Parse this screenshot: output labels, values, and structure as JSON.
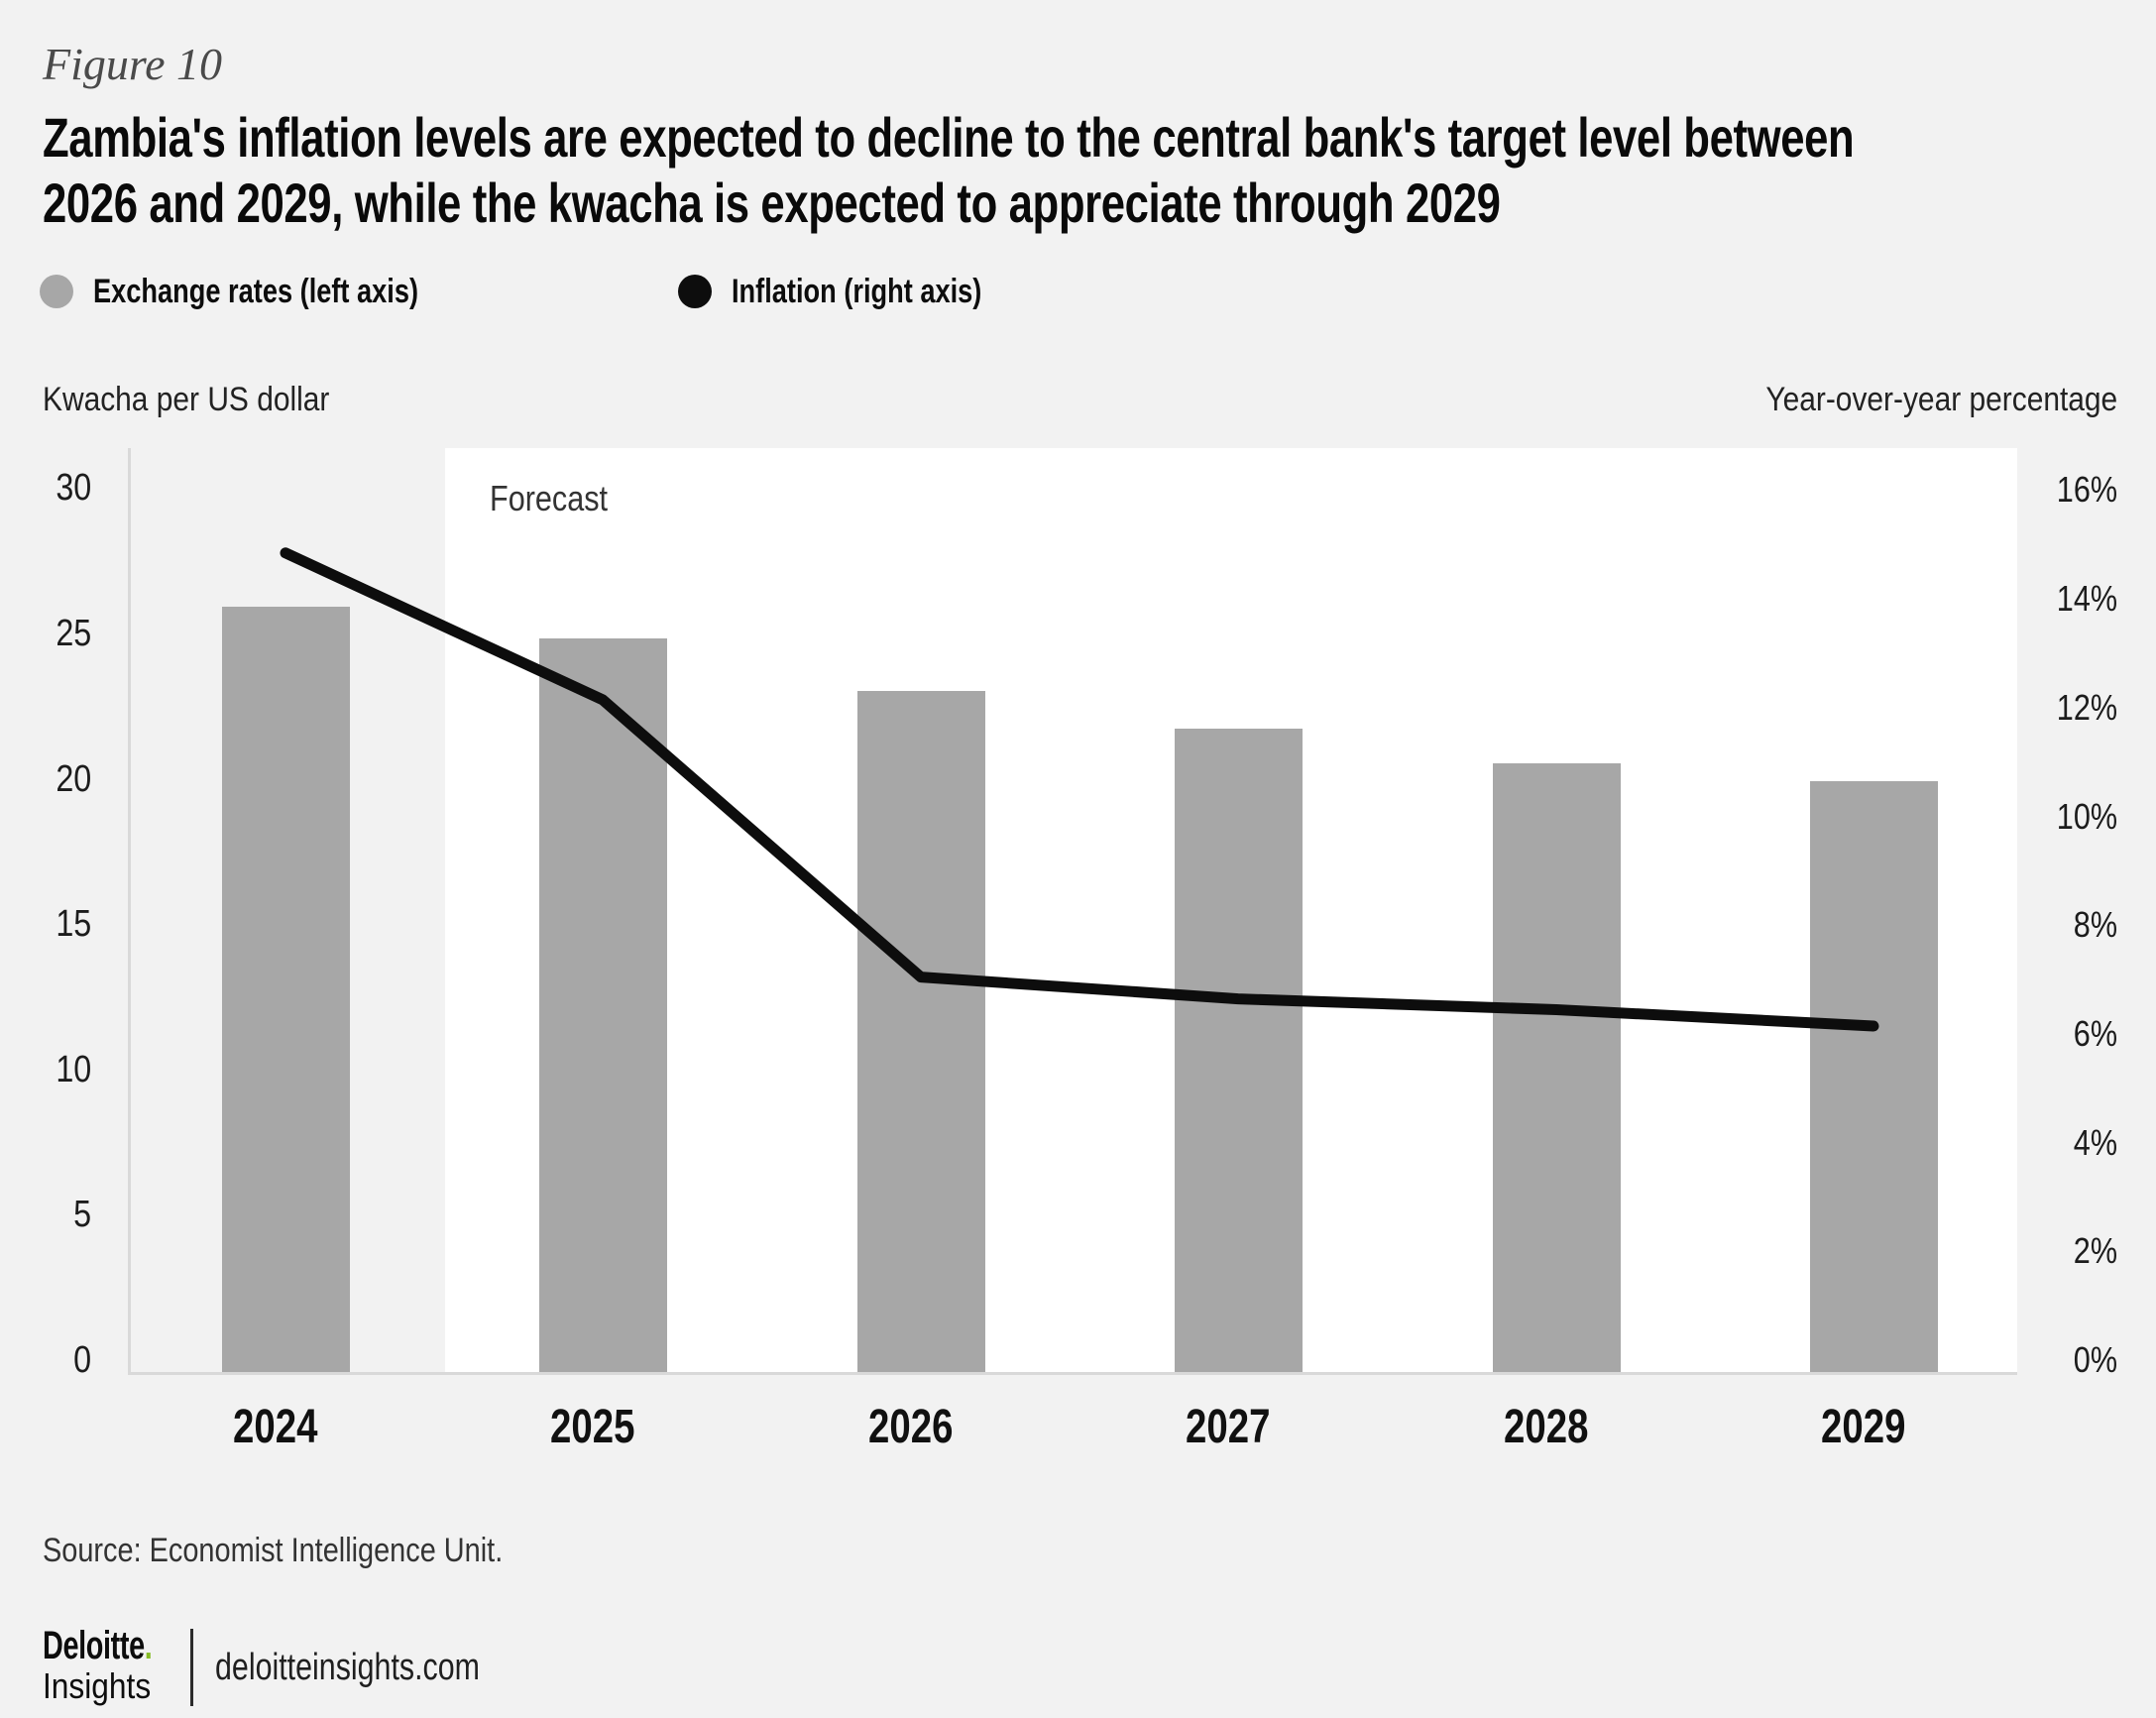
{
  "figure_label": "Figure 10",
  "title_lines": [
    "Zambia's inflation levels are expected to decline to the central bank's target level between",
    "2026 and 2029, while the kwacha is expected to appreciate through 2029"
  ],
  "legend": {
    "items": [
      {
        "label": "Exchange rates (left axis)",
        "color": "#a7a7a7"
      },
      {
        "label": "Inflation (right axis)",
        "color": "#0d0d0d"
      }
    ]
  },
  "forecast_label": "Forecast",
  "source": "Source: Economist Intelligence Unit.",
  "footer": {
    "brand_top": "Deloitte",
    "brand_dot": ".",
    "brand_bottom": "Insights",
    "site": "deloitteinsights.com"
  },
  "colors": {
    "page_bg": "#f2f2f2",
    "forecast_bg": "#ffffff",
    "bar": "#a7a7a7",
    "line": "#0d0d0d",
    "axis_line": "#d9d9d9",
    "accent_green": "#86bc25"
  },
  "chart_data": {
    "type": "bar",
    "subtype": "bar-and-line-dual-axis",
    "title": "Zambia's inflation levels are expected to decline to the central bank's target level between 2026 and 2029, while the kwacha is expected to appreciate through 2029",
    "categories": [
      "2024",
      "2025",
      "2026",
      "2027",
      "2028",
      "2029"
    ],
    "series": [
      {
        "name": "Exchange rates (left axis)",
        "type": "bar",
        "axis": "left",
        "values": [
          26.4,
          25.3,
          23.5,
          22.2,
          21.0,
          20.4
        ]
      },
      {
        "name": "Inflation (right axis)",
        "type": "line",
        "axis": "right",
        "values": [
          15.1,
          12.4,
          7.3,
          6.9,
          6.7,
          6.4
        ]
      }
    ],
    "left_axis": {
      "title": "Kwacha per US dollar",
      "ticks": [
        0,
        5,
        10,
        15,
        20,
        25,
        30
      ],
      "min": 0,
      "max": 31.85,
      "suffix": ""
    },
    "right_axis": {
      "title": "Year-over-year percentage",
      "ticks": [
        0,
        2,
        4,
        6,
        8,
        10,
        12,
        14,
        16
      ],
      "min": 0,
      "max": 17.03,
      "suffix": "%"
    },
    "forecast": {
      "label": "Forecast",
      "starts_after_category": "2024"
    },
    "grid": false,
    "legend_position": "top-left"
  }
}
